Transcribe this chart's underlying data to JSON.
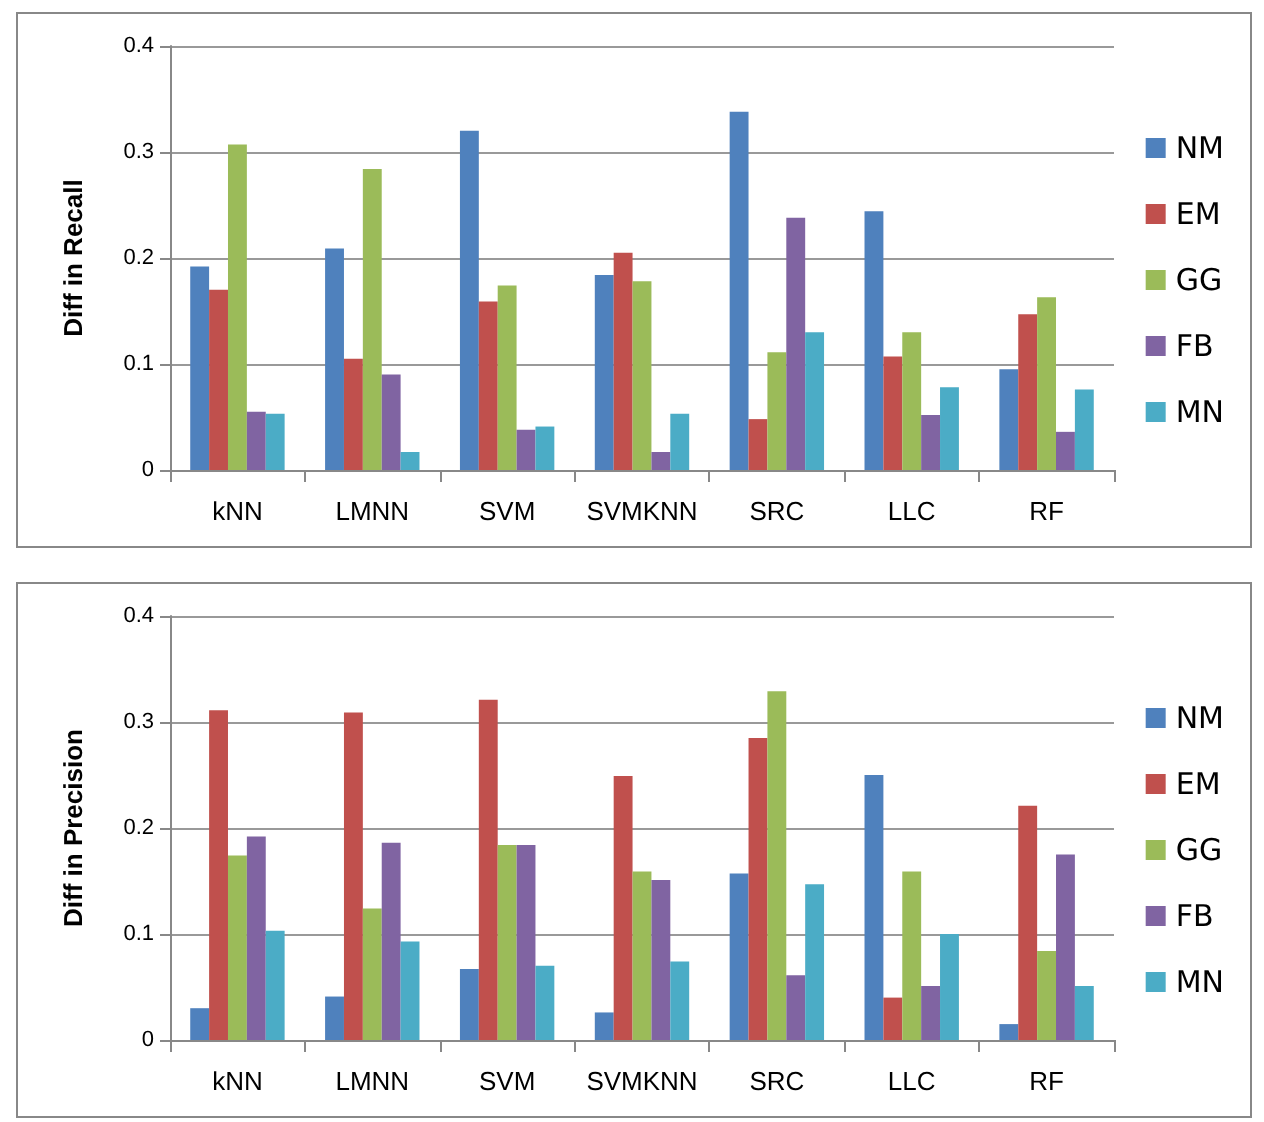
{
  "chart_data": [
    {
      "type": "bar",
      "ylabel": "Diff in Recall",
      "categories": [
        "kNN",
        "LMNN",
        "SVM",
        "SVMKNN",
        "SRC",
        "LLC",
        "RF"
      ],
      "series": [
        {
          "name": "NM",
          "color": "#4f81bd",
          "values": [
            0.192,
            0.209,
            0.32,
            0.184,
            0.338,
            0.244,
            0.095
          ]
        },
        {
          "name": "EM",
          "color": "#c0504d",
          "values": [
            0.17,
            0.105,
            0.159,
            0.205,
            0.048,
            0.107,
            0.147
          ]
        },
        {
          "name": "GG",
          "color": "#9bbb59",
          "values": [
            0.307,
            0.284,
            0.174,
            0.178,
            0.111,
            0.13,
            0.163
          ]
        },
        {
          "name": "FB",
          "color": "#8064a2",
          "values": [
            0.055,
            0.09,
            0.038,
            0.017,
            0.238,
            0.052,
            0.036
          ]
        },
        {
          "name": "MN",
          "color": "#4bacc6",
          "values": [
            0.053,
            0.017,
            0.041,
            0.053,
            0.13,
            0.078,
            0.076
          ]
        }
      ],
      "ylim": [
        0,
        0.4
      ],
      "yticks": [
        0,
        0.1,
        0.2,
        0.3,
        0.4
      ],
      "grid": "y",
      "legend": "right"
    },
    {
      "type": "bar",
      "ylabel": "Diff in Precision",
      "categories": [
        "kNN",
        "LMNN",
        "SVM",
        "SVMKNN",
        "SRC",
        "LLC",
        "RF"
      ],
      "series": [
        {
          "name": "NM",
          "color": "#4f81bd",
          "values": [
            0.03,
            0.041,
            0.067,
            0.026,
            0.157,
            0.25,
            0.015
          ]
        },
        {
          "name": "EM",
          "color": "#c0504d",
          "values": [
            0.311,
            0.309,
            0.321,
            0.249,
            0.285,
            0.04,
            0.221
          ]
        },
        {
          "name": "GG",
          "color": "#9bbb59",
          "values": [
            0.174,
            0.124,
            0.184,
            0.159,
            0.329,
            0.159,
            0.084
          ]
        },
        {
          "name": "FB",
          "color": "#8064a2",
          "values": [
            0.192,
            0.186,
            0.184,
            0.151,
            0.061,
            0.051,
            0.175
          ]
        },
        {
          "name": "MN",
          "color": "#4bacc6",
          "values": [
            0.103,
            0.093,
            0.07,
            0.074,
            0.147,
            0.1,
            0.051
          ]
        }
      ],
      "ylim": [
        0,
        0.4
      ],
      "yticks": [
        0,
        0.1,
        0.2,
        0.3,
        0.4
      ],
      "grid": "y",
      "legend": "right"
    }
  ]
}
